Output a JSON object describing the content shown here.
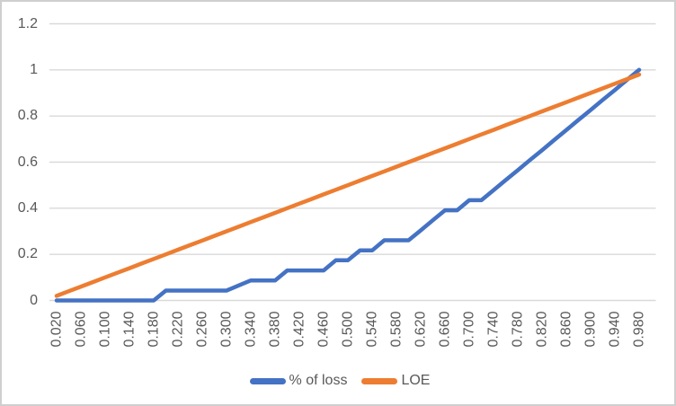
{
  "chart": {
    "background": "#ffffff",
    "border_color": "#cfcfcf"
  },
  "chart_data": {
    "type": "line",
    "title": "",
    "xlabel": "",
    "ylabel": "",
    "ylim": [
      0,
      1.2
    ],
    "grid": "horizontal",
    "grid_color": "#d9d9d9",
    "axis_text_color": "#595959",
    "legend_position": "bottom",
    "x": [
      0.02,
      0.04,
      0.06,
      0.08,
      0.1,
      0.12,
      0.14,
      0.16,
      0.18,
      0.2,
      0.22,
      0.24,
      0.26,
      0.28,
      0.3,
      0.32,
      0.34,
      0.36,
      0.38,
      0.4,
      0.42,
      0.44,
      0.46,
      0.48,
      0.5,
      0.52,
      0.54,
      0.56,
      0.58,
      0.6,
      0.62,
      0.64,
      0.66,
      0.68,
      0.7,
      0.72,
      0.74,
      0.76,
      0.78,
      0.8,
      0.82,
      0.84,
      0.86,
      0.88,
      0.9,
      0.92,
      0.94,
      0.96,
      0.98
    ],
    "x_tick_labels": [
      "0.020",
      "0.060",
      "0.100",
      "0.140",
      "0.180",
      "0.220",
      "0.260",
      "0.300",
      "0.340",
      "0.380",
      "0.420",
      "0.460",
      "0.500",
      "0.540",
      "0.580",
      "0.620",
      "0.660",
      "0.700",
      "0.740",
      "0.780",
      "0.820",
      "0.860",
      "0.900",
      "0.940",
      "0.980"
    ],
    "y_ticks": [
      0,
      0.2,
      0.4,
      0.6,
      0.8,
      1,
      1.2
    ],
    "y_tick_labels": [
      "0",
      "0.2",
      "0.4",
      "0.6",
      "0.8",
      "1",
      "1.2"
    ],
    "series": [
      {
        "name": "% of loss",
        "color": "#4472C4",
        "values": [
          0,
          0,
          0,
          0,
          0,
          0,
          0,
          0,
          0,
          0.043,
          0.043,
          0.043,
          0.043,
          0.043,
          0.043,
          0.065,
          0.087,
          0.087,
          0.087,
          0.13,
          0.13,
          0.13,
          0.13,
          0.174,
          0.174,
          0.217,
          0.217,
          0.261,
          0.261,
          0.261,
          0.304,
          0.348,
          0.391,
          0.391,
          0.435,
          0.435,
          0.478,
          0.522,
          0.565,
          0.609,
          0.652,
          0.696,
          0.739,
          0.783,
          0.826,
          0.87,
          0.913,
          0.957,
          1.0
        ]
      },
      {
        "name": "LOE",
        "color": "#ED7D31",
        "values": [
          0.02,
          0.04,
          0.06,
          0.08,
          0.1,
          0.12,
          0.14,
          0.16,
          0.18,
          0.2,
          0.22,
          0.24,
          0.26,
          0.28,
          0.3,
          0.32,
          0.34,
          0.36,
          0.38,
          0.4,
          0.42,
          0.44,
          0.46,
          0.48,
          0.5,
          0.52,
          0.54,
          0.56,
          0.58,
          0.6,
          0.62,
          0.64,
          0.66,
          0.68,
          0.7,
          0.72,
          0.74,
          0.76,
          0.78,
          0.8,
          0.82,
          0.84,
          0.86,
          0.88,
          0.9,
          0.92,
          0.94,
          0.96,
          0.98
        ]
      }
    ]
  }
}
